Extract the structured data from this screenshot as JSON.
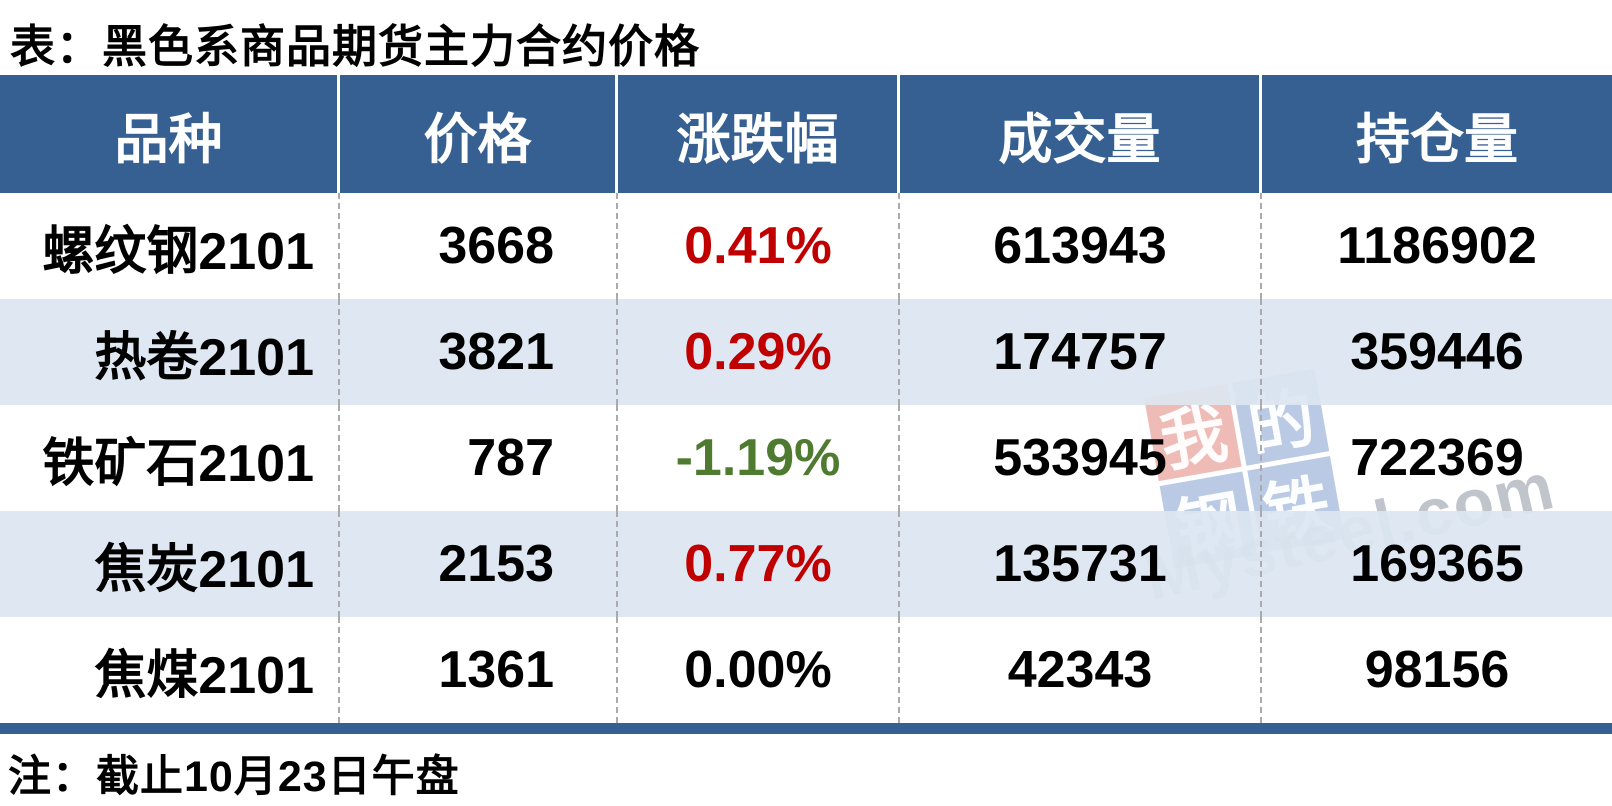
{
  "title": "表：黑色系商品期货主力合约价格",
  "note": "注：截止10月23日午盘",
  "colors": {
    "header_bg": "#376092",
    "row_alt": "#DCE6F1",
    "up": "#C00000",
    "down": "#4F7B31",
    "flat": "#000000"
  },
  "watermark": {
    "squares": [
      {
        "char": "我"
      },
      {
        "char": "的"
      },
      {
        "char": "钢"
      },
      {
        "char": "铁"
      }
    ],
    "brand": "Mysteel.com"
  },
  "table": {
    "headers": [
      "品种",
      "价格",
      "涨跌幅",
      "成交量",
      "持仓量"
    ],
    "rows": [
      {
        "variety": "螺纹钢2101",
        "price": "3668",
        "change": "0.41%",
        "direction": "up",
        "volume": "613943",
        "open_interest": "1186902"
      },
      {
        "variety": "热卷2101",
        "price": "3821",
        "change": "0.29%",
        "direction": "up",
        "volume": "174757",
        "open_interest": "359446"
      },
      {
        "variety": "铁矿石2101",
        "price": "787",
        "change": "-1.19%",
        "direction": "down",
        "volume": "533945",
        "open_interest": "722369"
      },
      {
        "variety": "焦炭2101",
        "price": "2153",
        "change": "0.77%",
        "direction": "up",
        "volume": "135731",
        "open_interest": "169365"
      },
      {
        "variety": "焦煤2101",
        "price": "1361",
        "change": "0.00%",
        "direction": "flat",
        "volume": "42343",
        "open_interest": "98156"
      }
    ]
  },
  "chart_data": {
    "type": "table",
    "title": "表：黑色系商品期货主力合约价格",
    "columns": [
      "品种",
      "价格",
      "涨跌幅",
      "成交量",
      "持仓量"
    ],
    "rows": [
      [
        "螺纹钢2101",
        3668,
        "0.41%",
        613943,
        1186902
      ],
      [
        "热卷2101",
        3821,
        "0.29%",
        174757,
        359446
      ],
      [
        "铁矿石2101",
        787,
        "-1.19%",
        533945,
        722369
      ],
      [
        "焦炭2101",
        2153,
        "0.77%",
        135731,
        169365
      ],
      [
        "焦煤2101",
        1361,
        "0.00%",
        42343,
        98156
      ]
    ],
    "note": "注：截止10月23日午盘",
    "layout": {
      "alternating_rows": true,
      "change_up_color": "#C00000",
      "change_down_color": "#4F7B31"
    }
  }
}
